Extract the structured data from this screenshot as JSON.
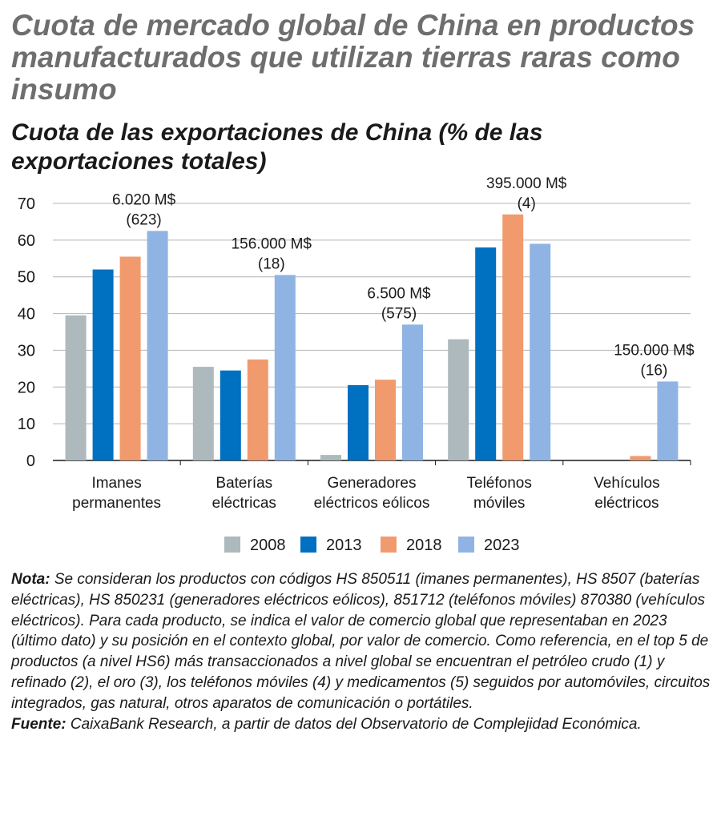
{
  "title": "Cuota de mercado global de China en productos manufacturados que utilizan tierras raras como insumo",
  "subtitle": "Cuota de las exportaciones de China (% de las exportaciones totales)",
  "chart_data": {
    "type": "bar",
    "categories": [
      [
        "Imanes",
        "permanentes"
      ],
      [
        "Baterías",
        "eléctricas"
      ],
      [
        "Generadores",
        "eléctricos eólicos"
      ],
      [
        "Teléfonos",
        "móviles"
      ],
      [
        "Vehículos",
        "eléctricos"
      ]
    ],
    "series": [
      {
        "name": "2008",
        "color": "#adb9bc",
        "values": [
          39.5,
          25.5,
          1.5,
          33,
          0
        ]
      },
      {
        "name": "2013",
        "color": "#0070c0",
        "values": [
          52,
          24.5,
          20.5,
          58,
          0
        ]
      },
      {
        "name": "2018",
        "color": "#f19a6e",
        "values": [
          55.5,
          27.5,
          22,
          67,
          1.2
        ]
      },
      {
        "name": "2023",
        "color": "#8fb4e3",
        "values": [
          62.5,
          50.5,
          37,
          59,
          21.5
        ]
      }
    ],
    "annotations": [
      {
        "category": 0,
        "value": "6.020 M$",
        "rank": "(623)"
      },
      {
        "category": 1,
        "value": "156.000 M$",
        "rank": "(18)"
      },
      {
        "category": 2,
        "value": "6.500 M$",
        "rank": "(575)"
      },
      {
        "category": 3,
        "value": "395.000 M$",
        "rank": "(4)"
      },
      {
        "category": 4,
        "value": "150.000 M$",
        "rank": "(16)"
      }
    ],
    "ylim": [
      0,
      70
    ],
    "yticks": [
      0,
      10,
      20,
      30,
      40,
      50,
      60,
      70
    ],
    "grid": true,
    "legend": "bottom"
  },
  "notes": {
    "nota_label": "Nota:",
    "nota_text": "Se consideran los productos con códigos HS 850511 (imanes permanentes), HS 8507 (baterías eléctricas), HS 850231 (generadores eléctricos eólicos), 851712 (teléfonos móviles) 870380 (vehículos eléctricos). Para cada producto, se indica el valor de comercio global que representaban en 2023 (último dato) y su posición en el contexto global, por valor de comercio. Como referencia, en el top 5 de productos (a nivel HS6) más transaccionados a nivel global se encuentran el petróleo crudo (1) y refinado (2), el oro (3), los teléfonos móviles (4) y medicamentos (5) seguidos por automóviles, circuitos integrados, gas natural, otros aparatos de comunicación o portátiles.",
    "fuente_label": "Fuente:",
    "fuente_text": "CaixaBank Research, a partir de datos del Observatorio de Complejidad Económica."
  }
}
